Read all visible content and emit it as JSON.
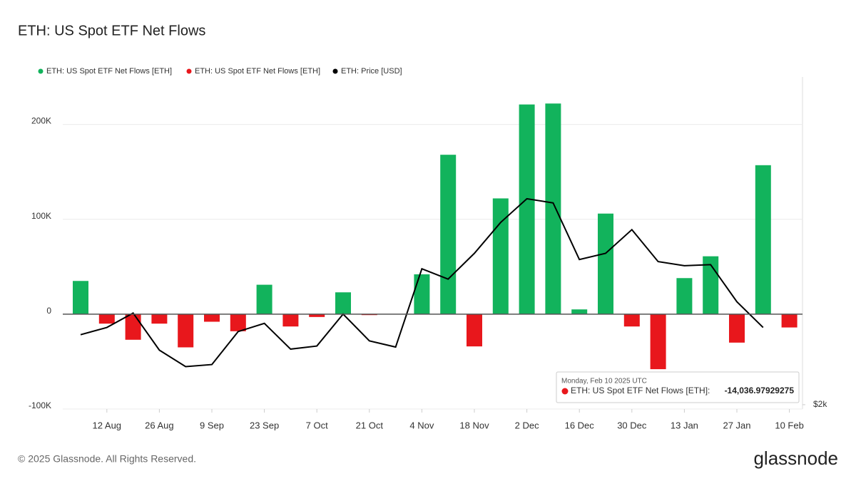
{
  "title": "ETH: US Spot ETF Net Flows",
  "footer": "© 2025 Glassnode. All Rights Reserved.",
  "logo": "glassnode",
  "chart_data": {
    "type": "bar",
    "categories": [
      null,
      "12 Aug",
      null,
      "26 Aug",
      null,
      "9 Sep",
      null,
      "23 Sep",
      null,
      "7 Oct",
      null,
      "21 Oct",
      null,
      "4 Nov",
      null,
      "18 Nov",
      null,
      "2 Dec",
      null,
      "16 Dec",
      null,
      "30 Dec",
      null,
      "13 Jan",
      null,
      "27 Jan",
      null,
      "10 Feb"
    ],
    "series": [
      {
        "name": "ETH: US Spot ETF Net Flows [ETH]",
        "color": "#12b35c",
        "type": "bar",
        "values": [
          35000,
          null,
          null,
          null,
          null,
          null,
          null,
          31000,
          null,
          null,
          23000,
          null,
          0,
          42000,
          168000,
          null,
          122000,
          221000,
          222000,
          5000,
          106000,
          null,
          null,
          38000,
          61000,
          null,
          157000,
          null
        ]
      },
      {
        "name": "ETH: US Spot ETF Net Flows [ETH]",
        "color": "#e8171c",
        "type": "bar",
        "values": [
          null,
          -10000,
          -27000,
          -10000,
          -35000,
          -8000,
          -18000,
          null,
          -13000,
          -3000,
          null,
          -1000,
          null,
          null,
          null,
          -34000,
          null,
          null,
          null,
          null,
          null,
          -13000,
          -58000,
          null,
          null,
          -30000,
          null,
          -14036.97929275
        ],
        "value_labels": [
          null,
          null,
          null,
          null,
          null,
          null,
          null,
          null,
          null,
          null,
          null,
          null,
          null,
          null,
          null,
          null,
          null,
          null,
          null,
          null,
          null,
          null,
          null,
          null,
          null,
          null,
          null,
          "-14,036.97929275"
        ]
      },
      {
        "name": "ETH: Price [USD]",
        "color": "#000000",
        "type": "line",
        "axis": "y2",
        "values": [
          2680,
          2750,
          2890,
          2530,
          2370,
          2390,
          2710,
          2790,
          2540,
          2570,
          2880,
          2620,
          2560,
          3320,
          3220,
          3470,
          3770,
          4000,
          3960,
          3410,
          3470,
          3700,
          3390,
          3350,
          3360,
          3000,
          2750,
          null
        ]
      }
    ],
    "ylim": [
      -100000,
      250000
    ],
    "yticks": [
      {
        "value": -100000,
        "label": "-100K"
      },
      0,
      {
        "value": 100000,
        "label": "100K"
      },
      {
        "value": 200000,
        "label": "200K"
      }
    ],
    "y2lim": [
      1958,
      5183
    ],
    "y2ticks": [
      {
        "value": 2000,
        "label": "$2k"
      }
    ],
    "grid": true,
    "tooltip": {
      "date": "Monday, Feb 10 2025 UTC",
      "series_label": "ETH: US Spot ETF Net Flows [ETH]:",
      "series_index": 1,
      "point_index": 27
    }
  }
}
